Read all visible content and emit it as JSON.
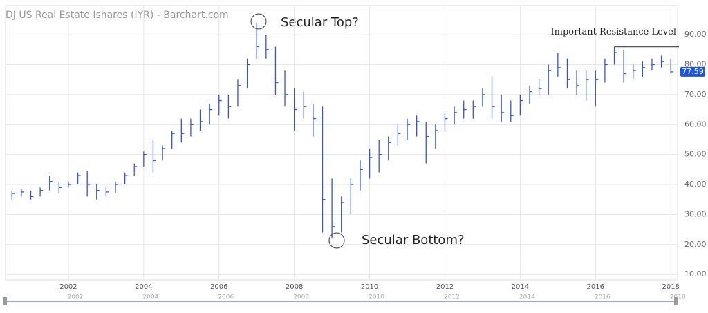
{
  "chart_data": {
    "type": "ohlc",
    "title": "DJ US Real Estate Ishares (IYR) - Barchart.com",
    "color": "#2f55d4",
    "x": [
      2000.5,
      2000.75,
      2001.0,
      2001.25,
      2001.5,
      2001.75,
      2002.0,
      2002.25,
      2002.5,
      2002.75,
      2003.0,
      2003.25,
      2003.5,
      2003.75,
      2004.0,
      2004.25,
      2004.5,
      2004.75,
      2005.0,
      2005.25,
      2005.5,
      2005.75,
      2006.0,
      2006.25,
      2006.5,
      2006.75,
      2007.0,
      2007.25,
      2007.5,
      2007.75,
      2008.0,
      2008.25,
      2008.5,
      2008.75,
      2009.0,
      2009.25,
      2009.5,
      2009.75,
      2010.0,
      2010.25,
      2010.5,
      2010.75,
      2011.0,
      2011.25,
      2011.5,
      2011.75,
      2012.0,
      2012.25,
      2012.5,
      2012.75,
      2013.0,
      2013.25,
      2013.5,
      2013.75,
      2014.0,
      2014.25,
      2014.5,
      2014.75,
      2015.0,
      2015.25,
      2015.5,
      2015.75,
      2016.0,
      2016.25,
      2016.5,
      2016.75,
      2017.0,
      2017.25,
      2017.5,
      2017.75,
      2018.0
    ],
    "high": [
      38,
      38.5,
      38,
      39,
      43,
      41,
      41,
      44,
      44.5,
      40,
      39,
      41,
      44,
      47,
      51,
      55,
      53,
      58,
      62,
      62,
      65,
      67,
      70,
      70,
      75,
      82,
      94,
      90,
      86,
      78,
      72,
      71,
      67,
      66,
      42,
      36,
      42,
      48,
      52,
      55,
      56,
      60,
      62,
      63,
      61,
      60,
      64,
      66,
      68,
      68,
      72,
      76,
      70,
      68,
      70,
      73,
      75,
      80,
      84,
      82,
      78,
      78,
      78,
      82,
      86,
      85,
      80,
      81,
      82,
      83,
      82
    ],
    "low": [
      35,
      36,
      35,
      36,
      38,
      37,
      39,
      40,
      36,
      35,
      36,
      37,
      40,
      43,
      46,
      44,
      48,
      52,
      54,
      56,
      58,
      60,
      63,
      62,
      66,
      72,
      82,
      82,
      70,
      66,
      58,
      62,
      56,
      24,
      22,
      24,
      30,
      38,
      42,
      44,
      48,
      53,
      55,
      56,
      47,
      52,
      58,
      60,
      62,
      62,
      66,
      62,
      61,
      61,
      63,
      67,
      70,
      70,
      76,
      72,
      70,
      68,
      66,
      74,
      80,
      74,
      75,
      76,
      78,
      79,
      77
    ],
    "close": [
      37,
      37.5,
      36,
      38,
      41,
      39,
      40,
      43,
      40,
      38,
      37.5,
      40,
      43,
      46,
      50,
      48,
      52,
      57,
      57,
      60,
      61,
      65,
      68,
      66,
      73,
      80,
      86,
      85,
      74,
      70,
      65,
      66,
      62,
      35,
      26,
      34,
      40,
      45,
      49,
      50,
      54,
      57,
      60,
      61,
      56,
      58,
      62,
      64,
      65,
      66,
      70,
      66,
      64,
      63,
      68,
      71,
      72,
      78,
      79,
      75,
      73,
      75,
      75,
      80,
      84,
      77,
      78,
      79,
      80,
      81,
      77.59
    ],
    "last_price": 77.59,
    "xlim": [
      2000.33,
      2018.18
    ],
    "ylim": [
      8.2,
      99.7
    ],
    "xticks": [
      2002,
      2004,
      2006,
      2008,
      2010,
      2012,
      2014,
      2016,
      2018
    ],
    "yticks": [
      {
        "value": 10,
        "label": "10.00"
      },
      {
        "value": 20,
        "label": "20.00"
      },
      {
        "value": 30,
        "label": "30.00"
      },
      {
        "value": 40,
        "label": "40.00"
      },
      {
        "value": 50,
        "label": "50.00"
      },
      {
        "value": 60,
        "label": "60.00"
      },
      {
        "value": 70,
        "label": "70.00"
      },
      {
        "value": 80,
        "label": "80.00"
      },
      {
        "value": 90,
        "label": "90.00"
      }
    ],
    "grid": true,
    "resistance": {
      "label": "Important Resistance Level",
      "value": 86,
      "from": 2016.5
    },
    "annotations": [
      "Secular Top?",
      "Secular Bottom?"
    ]
  }
}
